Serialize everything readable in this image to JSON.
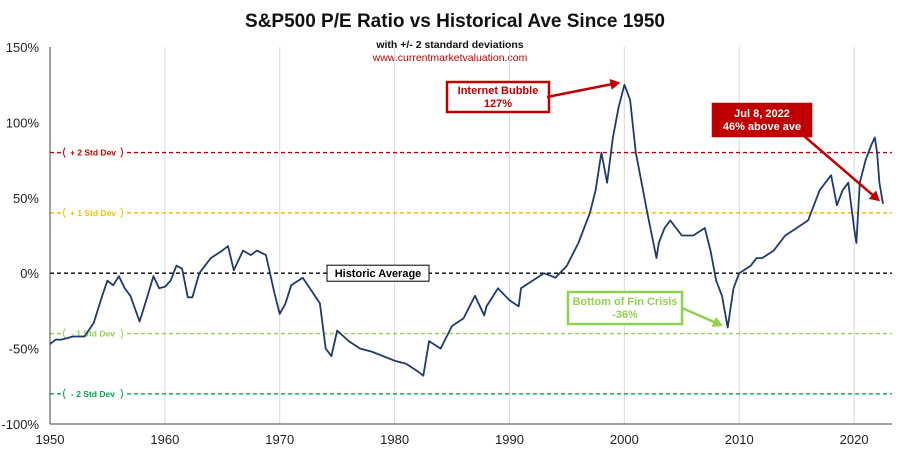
{
  "chart_data": {
    "type": "line",
    "title": "S&P500 P/E Ratio vs Historical Ave Since 1950",
    "subtitle": "with +/- 2 standard deviations",
    "source": "www.currentmarketvaluation.com",
    "xlim": [
      1950,
      2023.3
    ],
    "ylim": [
      -100,
      150
    ],
    "x_ticks": [
      1950,
      1960,
      1970,
      1980,
      1990,
      2000,
      2010,
      2020
    ],
    "y_ticks": [
      -100,
      -50,
      0,
      50,
      100,
      150
    ],
    "y_tick_labels": [
      "-100%",
      "-50%",
      "0%",
      "50%",
      "100%",
      "150%"
    ],
    "grid": "vertical",
    "reference_lines": [
      {
        "label": "+ 2 Std Dev",
        "y": 80,
        "color": "#c00000"
      },
      {
        "label": "+ 1 Std Dev",
        "y": 40,
        "color": "#f2c200"
      },
      {
        "label": "Historic Average",
        "y": 0,
        "color": "#000000"
      },
      {
        "label": "- 1 Std Dev",
        "y": -40,
        "color": "#92d050"
      },
      {
        "label": "- 2 Std Dev",
        "y": -80,
        "color": "#00a651"
      }
    ],
    "series": [
      {
        "color": "#1f3a6e",
        "x": [
          1950,
          1950.5,
          1951,
          1952,
          1953,
          1953.8,
          1954.5,
          1955,
          1955.5,
          1956,
          1956.5,
          1957,
          1957.8,
          1958.5,
          1959,
          1959.5,
          1960,
          1960.5,
          1961,
          1961.5,
          1962,
          1962.4,
          1963,
          1964,
          1965,
          1965.5,
          1966,
          1966.8,
          1967.5,
          1968,
          1968.8,
          1969.5,
          1970,
          1970.5,
          1971,
          1972,
          1972.8,
          1973.5,
          1974,
          1974.5,
          1975,
          1976,
          1977,
          1978,
          1979,
          1980,
          1981,
          1982,
          1982.5,
          1983,
          1984,
          1985,
          1986,
          1987,
          1987.8,
          1988,
          1989,
          1990,
          1990.8,
          1991,
          1992,
          1993,
          1994,
          1995,
          1996,
          1997,
          1997.5,
          1998,
          1998.5,
          1999,
          1999.5,
          2000,
          2000.5,
          2001,
          2001.5,
          2002,
          2002.8,
          2003,
          2003.5,
          2004,
          2005,
          2006,
          2007,
          2007.5,
          2008,
          2008.5,
          2009,
          2009.5,
          2010,
          2011,
          2011.5,
          2012,
          2013,
          2014,
          2015,
          2016,
          2016.5,
          2017,
          2018,
          2018.5,
          2019,
          2019.5,
          2020,
          2020.2,
          2020.5,
          2021,
          2021.5,
          2021.8,
          2022,
          2022.2,
          2022.52
        ],
        "values": [
          -47,
          -44,
          -44,
          -42,
          -42,
          -33,
          -16,
          -5,
          -8,
          -2,
          -10,
          -15,
          -32,
          -15,
          -2,
          -10,
          -9,
          -5,
          5,
          3,
          -16,
          -16,
          0,
          10,
          15,
          18,
          2,
          15,
          12,
          15,
          12,
          -12,
          -27,
          -20,
          -8,
          -3,
          -12,
          -20,
          -50,
          -55,
          -38,
          -45,
          -50,
          -52,
          -55,
          -58,
          -60,
          -65,
          -68,
          -45,
          -50,
          -35,
          -30,
          -15,
          -28,
          -22,
          -10,
          -18,
          -22,
          -10,
          -5,
          0,
          -3,
          5,
          20,
          40,
          55,
          80,
          60,
          90,
          110,
          125,
          115,
          80,
          60,
          40,
          10,
          20,
          30,
          35,
          25,
          25,
          30,
          15,
          -5,
          -15,
          -36,
          -10,
          0,
          5,
          10,
          10,
          15,
          25,
          30,
          35,
          45,
          55,
          65,
          45,
          55,
          60,
          30,
          20,
          60,
          75,
          85,
          90,
          80,
          60,
          46
        ]
      }
    ],
    "annotations": [
      {
        "lines": [
          "Internet Bubble",
          "127%"
        ],
        "x": 2000,
        "y": 127
      },
      {
        "lines": [
          "Jul 8, 2022",
          "46% above ave"
        ],
        "x": 2022.52,
        "y": 46
      },
      {
        "lines": [
          "Bottom of Fin Crisis",
          "-36%"
        ],
        "x": 2008.9,
        "y": -36
      }
    ]
  }
}
